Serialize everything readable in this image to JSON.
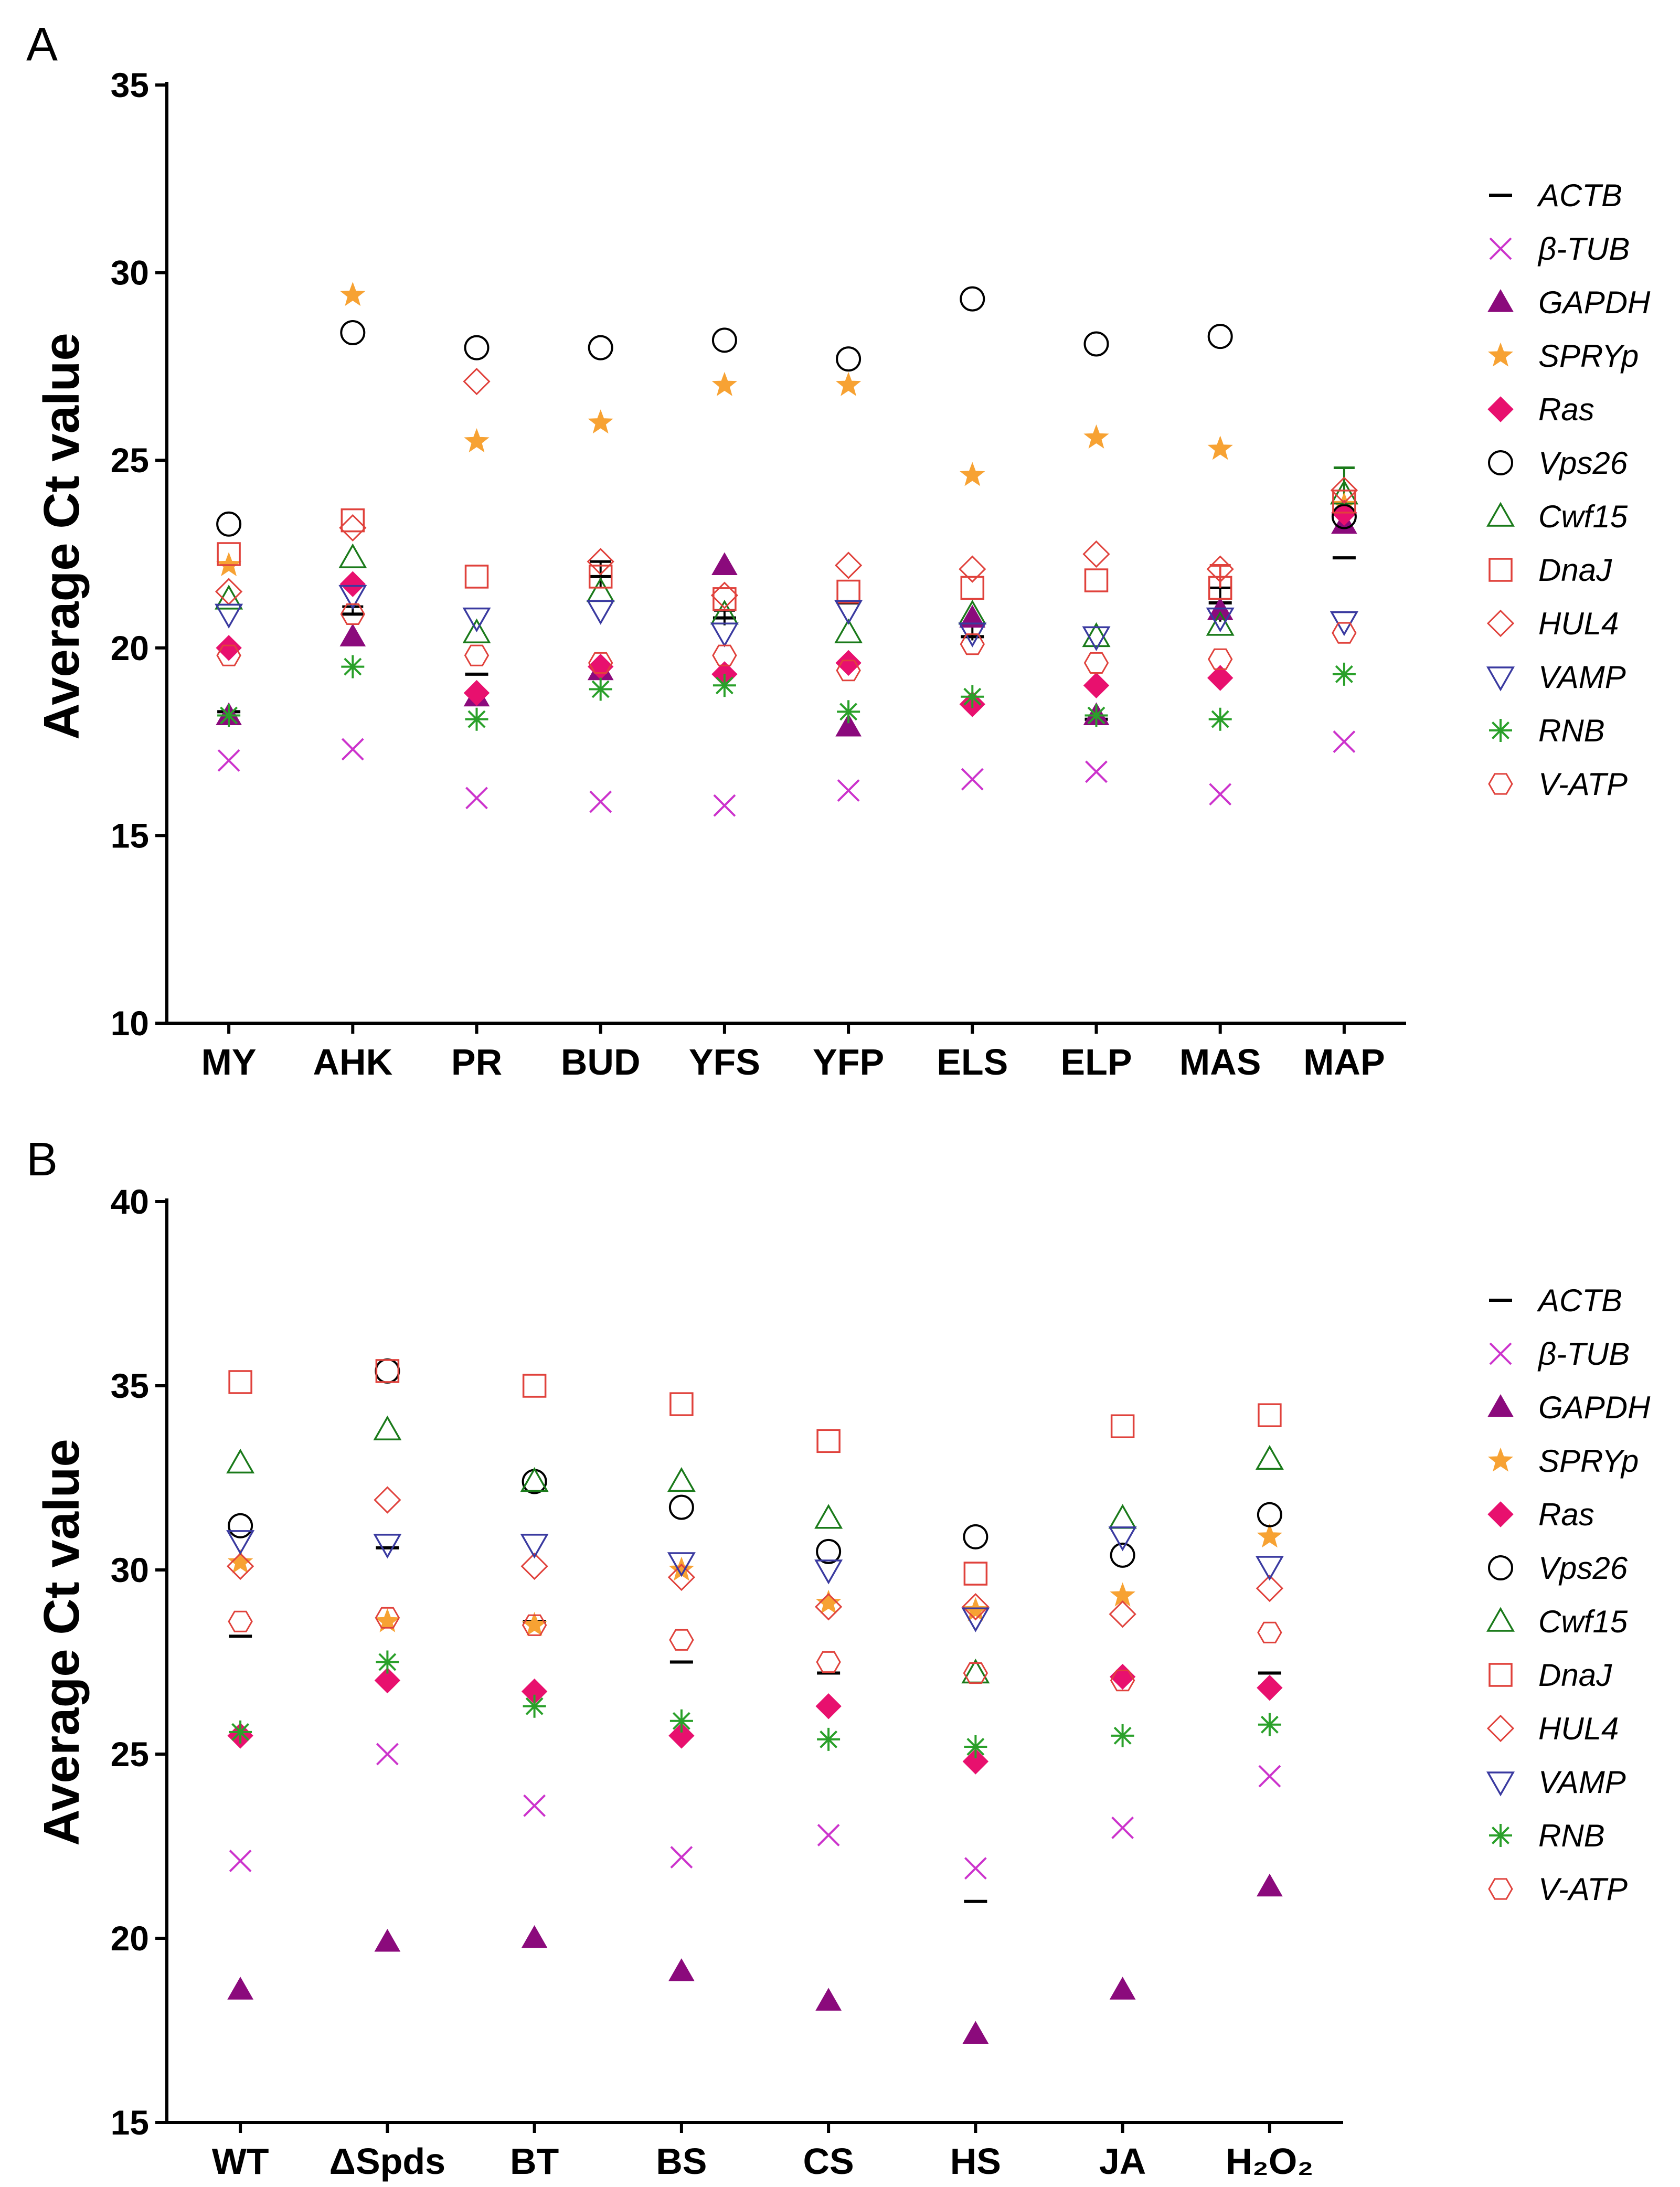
{
  "series_styles": [
    {
      "name": "ACTB",
      "marker": "dash",
      "color": "#000000"
    },
    {
      "name": "β-TUB",
      "marker": "cross",
      "color": "#cc33cc"
    },
    {
      "name": "GAPDH",
      "marker": "triangle-filled",
      "color": "#8b0a7c"
    },
    {
      "name": "SPRYp",
      "marker": "star",
      "color": "#f7a233"
    },
    {
      "name": "Ras",
      "marker": "diamond-filled",
      "color": "#e8106e"
    },
    {
      "name": "Vps26",
      "marker": "circle-open",
      "color": "#000000"
    },
    {
      "name": "Cwf15",
      "marker": "triangle-open",
      "color": "#1a7a1a"
    },
    {
      "name": "DnaJ",
      "marker": "square-open",
      "color": "#e0423c"
    },
    {
      "name": "HUL4",
      "marker": "diamond-open",
      "color": "#e0423c"
    },
    {
      "name": "VAMP",
      "marker": "triangle-down-open",
      "color": "#3a3aa0"
    },
    {
      "name": "RNB",
      "marker": "asterisk",
      "color": "#2aa02a"
    },
    {
      "name": "V-ATP",
      "marker": "hexagon-open",
      "color": "#e0423c"
    }
  ],
  "chart_data": [
    {
      "type": "scatter",
      "panel": "A",
      "title": "",
      "xlabel": "",
      "ylabel": "Average Ct value",
      "ylim": [
        10,
        35
      ],
      "yticks": [
        "10",
        "15",
        "20",
        "25",
        "30",
        "35"
      ],
      "categories": [
        "MY",
        "AHK",
        "PR",
        "BUD",
        "YFS",
        "YFP",
        "ELS",
        "ELP",
        "MAS",
        "MAP"
      ],
      "series": [
        {
          "name": "ACTB",
          "values": [
            18.3,
            20.9,
            19.3,
            21.9,
            20.8,
            21.2,
            20.3,
            18.1,
            21.2,
            22.4
          ]
        },
        {
          "name": "β-TUB",
          "values": [
            17.0,
            17.3,
            16.0,
            15.9,
            15.8,
            16.2,
            16.5,
            16.7,
            16.1,
            17.5
          ]
        },
        {
          "name": "GAPDH",
          "values": [
            18.2,
            20.3,
            18.7,
            19.4,
            22.2,
            17.9,
            20.8,
            18.2,
            21.0,
            23.3
          ]
        },
        {
          "name": "SPRYp",
          "values": [
            22.2,
            29.4,
            25.5,
            26.0,
            27.0,
            27.0,
            24.6,
            25.6,
            25.3,
            23.8
          ]
        },
        {
          "name": "Ras",
          "values": [
            20.0,
            21.7,
            18.8,
            19.5,
            19.3,
            19.6,
            18.5,
            19.0,
            19.2,
            23.6
          ]
        },
        {
          "name": "Vps26",
          "values": [
            23.3,
            28.4,
            28.0,
            28.0,
            28.2,
            27.7,
            29.3,
            28.1,
            28.3,
            23.5
          ]
        },
        {
          "name": "Cwf15",
          "values": [
            21.3,
            22.4,
            20.4,
            21.5,
            20.9,
            20.4,
            20.9,
            20.3,
            20.6,
            24.1
          ]
        },
        {
          "name": "DnaJ",
          "values": [
            22.5,
            23.4,
            21.9,
            21.9,
            21.3,
            21.5,
            21.6,
            21.8,
            21.6,
            23.9
          ]
        },
        {
          "name": "HUL4",
          "values": [
            21.5,
            23.2,
            27.1,
            22.3,
            21.4,
            22.2,
            22.1,
            22.5,
            22.1,
            24.2
          ]
        },
        {
          "name": "VAMP",
          "values": [
            20.9,
            21.4,
            20.8,
            21.0,
            20.4,
            21.0,
            20.4,
            20.3,
            20.8,
            20.7
          ]
        },
        {
          "name": "RNB",
          "values": [
            18.2,
            19.5,
            18.1,
            18.9,
            19.0,
            18.3,
            18.7,
            18.2,
            18.1,
            19.3
          ]
        },
        {
          "name": "V-ATP",
          "values": [
            19.8,
            20.9,
            19.8,
            19.6,
            19.8,
            19.4,
            20.1,
            19.6,
            19.7,
            20.4
          ]
        }
      ],
      "error_bars": [
        {
          "category": "AHK",
          "series": "ACTB",
          "low": 20.9,
          "high": 21.1,
          "color": "#000000"
        },
        {
          "category": "BUD",
          "series": "ACTB",
          "low": 21.6,
          "high": 22.3,
          "color": "#000000"
        },
        {
          "category": "YFS",
          "series": "ACTB",
          "low": 20.6,
          "high": 21.0,
          "color": "#000000"
        },
        {
          "category": "ELS",
          "series": "ACTB",
          "low": 20.2,
          "high": 20.6,
          "color": "#000000"
        },
        {
          "category": "MAS",
          "series": "ACTB",
          "low": 20.7,
          "high": 21.6,
          "color": "#000000"
        },
        {
          "category": "MAS",
          "series": "DnaJ",
          "low": 21.6,
          "high": 22.2,
          "color": "#e0423c"
        },
        {
          "category": "MAP",
          "series": "Cwf15",
          "low": 23.9,
          "high": 24.8,
          "color": "#1a7a1a"
        }
      ]
    },
    {
      "type": "scatter",
      "panel": "B",
      "title": "",
      "xlabel": "",
      "ylabel": "Average Ct value",
      "ylim": [
        15,
        40
      ],
      "yticks": [
        "15",
        "20",
        "25",
        "30",
        "35",
        "40"
      ],
      "categories": [
        "WT",
        "ΔSpds",
        "BT",
        "BS",
        "CS",
        "HS",
        "JA",
        "H₂O₂"
      ],
      "series": [
        {
          "name": "ACTB",
          "values": [
            28.2,
            30.6,
            28.6,
            27.5,
            27.2,
            21.0,
            27.1,
            27.2
          ]
        },
        {
          "name": "β-TUB",
          "values": [
            22.1,
            25.0,
            23.6,
            22.2,
            22.8,
            21.9,
            23.0,
            24.4
          ]
        },
        {
          "name": "GAPDH",
          "values": [
            18.6,
            19.9,
            20.0,
            19.1,
            18.3,
            17.4,
            18.6,
            21.4
          ]
        },
        {
          "name": "SPRYp",
          "values": [
            30.2,
            28.6,
            28.5,
            30.0,
            29.1,
            28.9,
            29.3,
            30.9
          ]
        },
        {
          "name": "Ras",
          "values": [
            25.5,
            27.0,
            26.7,
            25.5,
            26.3,
            24.8,
            27.1,
            26.8
          ]
        },
        {
          "name": "Vps26",
          "values": [
            31.2,
            35.4,
            32.4,
            31.7,
            30.5,
            30.9,
            30.4,
            31.5
          ]
        },
        {
          "name": "Cwf15",
          "values": [
            32.9,
            33.8,
            32.4,
            32.4,
            31.4,
            27.2,
            31.4,
            33.0
          ]
        },
        {
          "name": "DnaJ",
          "values": [
            35.1,
            35.4,
            35.0,
            34.5,
            33.5,
            29.9,
            33.9,
            34.2
          ]
        },
        {
          "name": "HUL4",
          "values": [
            30.1,
            31.9,
            30.1,
            29.8,
            29.0,
            29.0,
            28.8,
            29.5
          ]
        },
        {
          "name": "VAMP",
          "values": [
            30.8,
            30.7,
            30.7,
            30.2,
            30.0,
            28.7,
            30.9,
            30.1
          ]
        },
        {
          "name": "RNB",
          "values": [
            25.6,
            27.5,
            26.3,
            25.9,
            25.4,
            25.2,
            25.5,
            25.8
          ]
        },
        {
          "name": "V-ATP",
          "values": [
            28.6,
            28.7,
            28.5,
            28.1,
            27.5,
            27.2,
            27.0,
            28.3
          ]
        }
      ],
      "error_bars": []
    }
  ]
}
